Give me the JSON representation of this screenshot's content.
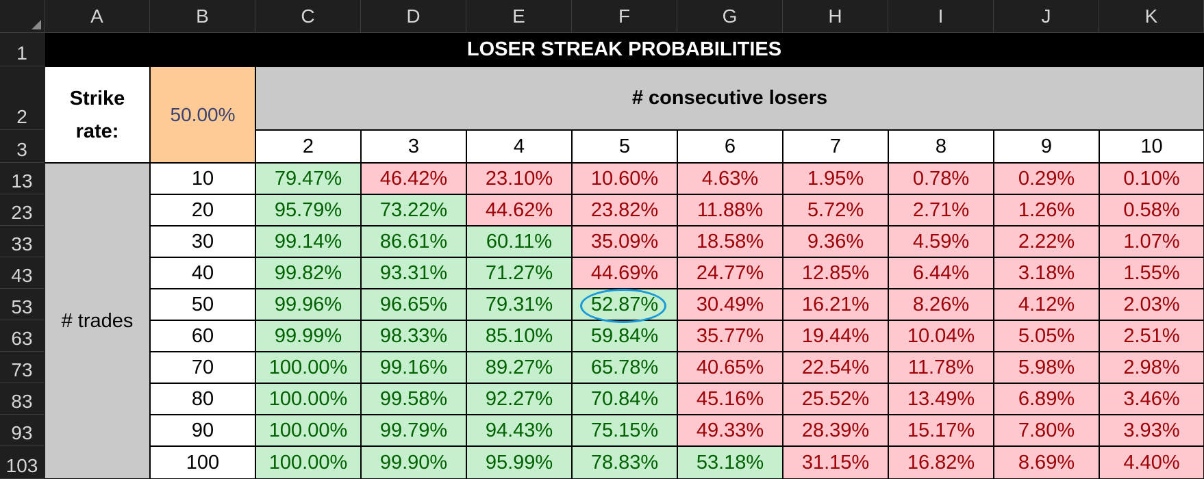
{
  "spreadsheet": {
    "columns": [
      "A",
      "B",
      "C",
      "D",
      "E",
      "F",
      "G",
      "H",
      "I",
      "J",
      "K"
    ],
    "row_numbers": [
      "1",
      "2",
      "3",
      "13",
      "23",
      "33",
      "43",
      "53",
      "63",
      "73",
      "83",
      "93",
      "103"
    ],
    "title": "LOSER STREAK PROBABILITIES",
    "strike_label_line1": "Strike",
    "strike_label_line2": "rate:",
    "strike_rate": "50.00%",
    "consecutive_header": "# consecutive losers",
    "loser_counts": [
      "2",
      "3",
      "4",
      "5",
      "6",
      "7",
      "8",
      "9",
      "10"
    ],
    "trades_label": "# trades",
    "rows": [
      {
        "trades": "10",
        "values": [
          "79.47%",
          "46.42%",
          "23.10%",
          "10.60%",
          "4.63%",
          "1.95%",
          "0.78%",
          "0.29%",
          "0.10%"
        ]
      },
      {
        "trades": "20",
        "values": [
          "95.79%",
          "73.22%",
          "44.62%",
          "23.82%",
          "11.88%",
          "5.72%",
          "2.71%",
          "1.26%",
          "0.58%"
        ]
      },
      {
        "trades": "30",
        "values": [
          "99.14%",
          "86.61%",
          "60.11%",
          "35.09%",
          "18.58%",
          "9.36%",
          "4.59%",
          "2.22%",
          "1.07%"
        ]
      },
      {
        "trades": "40",
        "values": [
          "99.82%",
          "93.31%",
          "71.27%",
          "44.69%",
          "24.77%",
          "12.85%",
          "6.44%",
          "3.18%",
          "1.55%"
        ]
      },
      {
        "trades": "50",
        "values": [
          "99.96%",
          "96.65%",
          "79.31%",
          "52.87%",
          "30.49%",
          "16.21%",
          "8.26%",
          "4.12%",
          "2.03%"
        ]
      },
      {
        "trades": "60",
        "values": [
          "99.99%",
          "98.33%",
          "85.10%",
          "59.84%",
          "35.77%",
          "19.44%",
          "10.04%",
          "5.05%",
          "2.51%"
        ]
      },
      {
        "trades": "70",
        "values": [
          "100.00%",
          "99.16%",
          "89.27%",
          "65.78%",
          "40.65%",
          "22.54%",
          "11.78%",
          "5.98%",
          "2.98%"
        ]
      },
      {
        "trades": "80",
        "values": [
          "100.00%",
          "99.58%",
          "92.27%",
          "70.84%",
          "45.16%",
          "25.52%",
          "13.49%",
          "6.89%",
          "3.46%"
        ]
      },
      {
        "trades": "90",
        "values": [
          "100.00%",
          "99.79%",
          "94.43%",
          "75.15%",
          "49.33%",
          "28.39%",
          "15.17%",
          "7.80%",
          "3.93%"
        ]
      },
      {
        "trades": "100",
        "values": [
          "100.00%",
          "99.90%",
          "95.99%",
          "78.83%",
          "53.18%",
          "31.15%",
          "16.82%",
          "8.69%",
          "4.40%"
        ]
      }
    ],
    "highlighted_cell": {
      "trades": "50",
      "losers": "5",
      "value": "52.87%"
    },
    "colors": {
      "positive_fill": "#c6efce",
      "positive_text": "#006100",
      "negative_fill": "#ffc7ce",
      "negative_text": "#9c0006",
      "strike_fill": "#fecb96",
      "circle": "#1a9ad9"
    }
  }
}
